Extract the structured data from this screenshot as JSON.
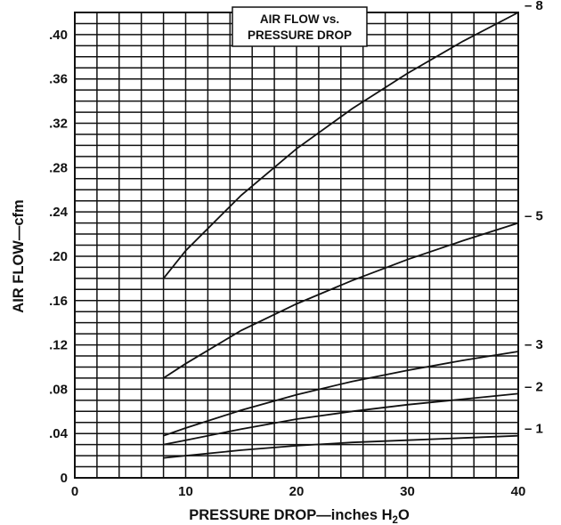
{
  "chart_data": {
    "type": "line",
    "title": [
      "AIR FLOW vs.",
      "PRESSURE DROP"
    ],
    "xlabel": "PRESSURE DROP—inches H",
    "xlabel_subscript": "2",
    "xlabel_suffix": "O",
    "ylabel": "AIR FLOW—cfm",
    "xlim": [
      0,
      40
    ],
    "ylim": [
      0,
      0.42
    ],
    "x_ticks": [
      0,
      10,
      20,
      30,
      40
    ],
    "x_tick_labels": [
      "0",
      "10",
      "20",
      "30",
      "40"
    ],
    "y_ticks": [
      0,
      0.04,
      0.08,
      0.12,
      0.16,
      0.2,
      0.24,
      0.28,
      0.32,
      0.36,
      0.4
    ],
    "y_tick_labels": [
      "0",
      ".04",
      ".08",
      ".12",
      ".16",
      ".20",
      ".24",
      ".28",
      ".32",
      ".36",
      ".40"
    ],
    "grid": true,
    "series": [
      {
        "name": "– 8",
        "x": [
          8,
          10,
          15,
          20,
          25,
          30,
          35,
          40
        ],
        "y": [
          0.18,
          0.205,
          0.255,
          0.297,
          0.333,
          0.365,
          0.394,
          0.42
        ]
      },
      {
        "name": "– 5",
        "x": [
          8,
          10,
          15,
          20,
          25,
          30,
          35,
          40
        ],
        "y": [
          0.09,
          0.103,
          0.133,
          0.157,
          0.178,
          0.197,
          0.214,
          0.23
        ]
      },
      {
        "name": "– 3",
        "x": [
          8,
          10,
          15,
          20,
          25,
          30,
          35,
          40
        ],
        "y": [
          0.038,
          0.045,
          0.061,
          0.075,
          0.087,
          0.097,
          0.106,
          0.114
        ]
      },
      {
        "name": "– 2",
        "x": [
          8,
          10,
          15,
          20,
          25,
          30,
          35,
          40
        ],
        "y": [
          0.03,
          0.034,
          0.044,
          0.053,
          0.06,
          0.066,
          0.071,
          0.076
        ]
      },
      {
        "name": "– 1",
        "x": [
          8,
          10,
          15,
          20,
          25,
          30,
          35,
          40
        ],
        "y": [
          0.018,
          0.02,
          0.025,
          0.029,
          0.032,
          0.034,
          0.036,
          0.038
        ]
      }
    ]
  }
}
